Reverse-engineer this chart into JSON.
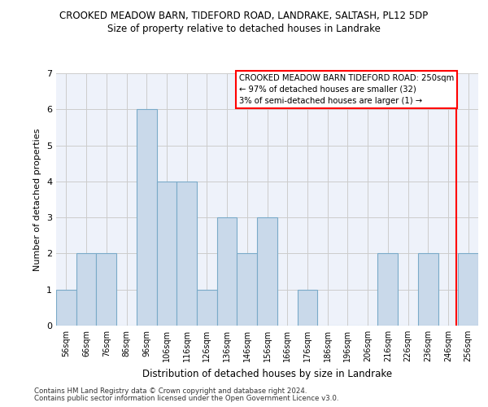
{
  "title_line1": "CROOKED MEADOW BARN, TIDEFORD ROAD, LANDRAKE, SALTASH, PL12 5DP",
  "title_line2": "Size of property relative to detached houses in Landrake",
  "xlabel": "Distribution of detached houses by size in Landrake",
  "ylabel": "Number of detached properties",
  "footer_line1": "Contains HM Land Registry data © Crown copyright and database right 2024.",
  "footer_line2": "Contains public sector information licensed under the Open Government Licence v3.0.",
  "bin_labels": [
    "56sqm",
    "66sqm",
    "76sqm",
    "86sqm",
    "96sqm",
    "106sqm",
    "116sqm",
    "126sqm",
    "136sqm",
    "146sqm",
    "156sqm",
    "166sqm",
    "176sqm",
    "186sqm",
    "196sqm",
    "206sqm",
    "216sqm",
    "226sqm",
    "236sqm",
    "246sqm",
    "256sqm"
  ],
  "bar_heights": [
    1,
    2,
    2,
    0,
    6,
    4,
    4,
    1,
    3,
    2,
    3,
    0,
    1,
    0,
    0,
    0,
    2,
    0,
    2,
    0,
    2
  ],
  "bar_color": "#c9d9ea",
  "bar_edgecolor": "#7aaac8",
  "bar_linewidth": 0.8,
  "grid_color": "#cccccc",
  "background_color": "#eef2fa",
  "annotation_line1": "CROOKED MEADOW BARN TIDEFORD ROAD: 250sqm",
  "annotation_line2": "← 97% of detached houses are smaller (32)",
  "annotation_line3": "3% of semi-detached houses are larger (1) →",
  "annotation_box_edgecolor": "red",
  "ylim": [
    0,
    7
  ],
  "yticks": [
    0,
    1,
    2,
    3,
    4,
    5,
    6,
    7
  ]
}
